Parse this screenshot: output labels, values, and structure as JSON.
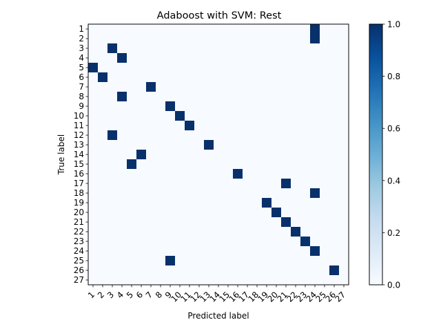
{
  "chart_data": {
    "type": "heatmap",
    "title": "Adaboost with SVM: Rest",
    "xlabel": "Predicted label",
    "ylabel": "True label",
    "x_tick_labels": [
      "1",
      "2",
      "3",
      "4",
      "5",
      "6",
      "7",
      "8",
      "9",
      "10",
      "11",
      "12",
      "13",
      "14",
      "15",
      "16",
      "17",
      "18",
      "19",
      "20",
      "21",
      "22",
      "23",
      "24",
      "25",
      "26",
      "27"
    ],
    "y_tick_labels": [
      "1",
      "2",
      "3",
      "4",
      "5",
      "6",
      "7",
      "8",
      "9",
      "10",
      "11",
      "12",
      "13",
      "14",
      "15",
      "16",
      "17",
      "18",
      "19",
      "20",
      "21",
      "22",
      "23",
      "24",
      "25",
      "26",
      "27"
    ],
    "cells": [
      {
        "true": 1,
        "pred": 24,
        "value": 1.0
      },
      {
        "true": 2,
        "pred": 24,
        "value": 1.0
      },
      {
        "true": 3,
        "pred": 3,
        "value": 1.0
      },
      {
        "true": 4,
        "pred": 4,
        "value": 1.0
      },
      {
        "true": 5,
        "pred": 1,
        "value": 1.0
      },
      {
        "true": 6,
        "pred": 2,
        "value": 1.0
      },
      {
        "true": 7,
        "pred": 7,
        "value": 1.0
      },
      {
        "true": 8,
        "pred": 4,
        "value": 1.0
      },
      {
        "true": 9,
        "pred": 9,
        "value": 1.0
      },
      {
        "true": 10,
        "pred": 10,
        "value": 1.0
      },
      {
        "true": 11,
        "pred": 11,
        "value": 1.0
      },
      {
        "true": 12,
        "pred": 3,
        "value": 1.0
      },
      {
        "true": 13,
        "pred": 13,
        "value": 1.0
      },
      {
        "true": 14,
        "pred": 6,
        "value": 1.0
      },
      {
        "true": 15,
        "pred": 5,
        "value": 1.0
      },
      {
        "true": 16,
        "pred": 16,
        "value": 1.0
      },
      {
        "true": 17,
        "pred": 21,
        "value": 1.0
      },
      {
        "true": 18,
        "pred": 24,
        "value": 1.0
      },
      {
        "true": 19,
        "pred": 19,
        "value": 1.0
      },
      {
        "true": 20,
        "pred": 20,
        "value": 1.0
      },
      {
        "true": 21,
        "pred": 21,
        "value": 1.0
      },
      {
        "true": 22,
        "pred": 22,
        "value": 1.0
      },
      {
        "true": 23,
        "pred": 23,
        "value": 1.0
      },
      {
        "true": 24,
        "pred": 24,
        "value": 1.0
      },
      {
        "true": 25,
        "pred": 9,
        "value": 1.0
      },
      {
        "true": 26,
        "pred": 26,
        "value": 1.0
      }
    ],
    "zlim": [
      0.0,
      1.0
    ],
    "colorbar_ticks": [
      "0.0",
      "0.2",
      "0.4",
      "0.6",
      "0.8",
      "1.0"
    ],
    "colormap": "Blues",
    "colors": {
      "low": "#f7fbff",
      "high": "#08306b",
      "mid": "#4292c6"
    },
    "grid": false
  }
}
